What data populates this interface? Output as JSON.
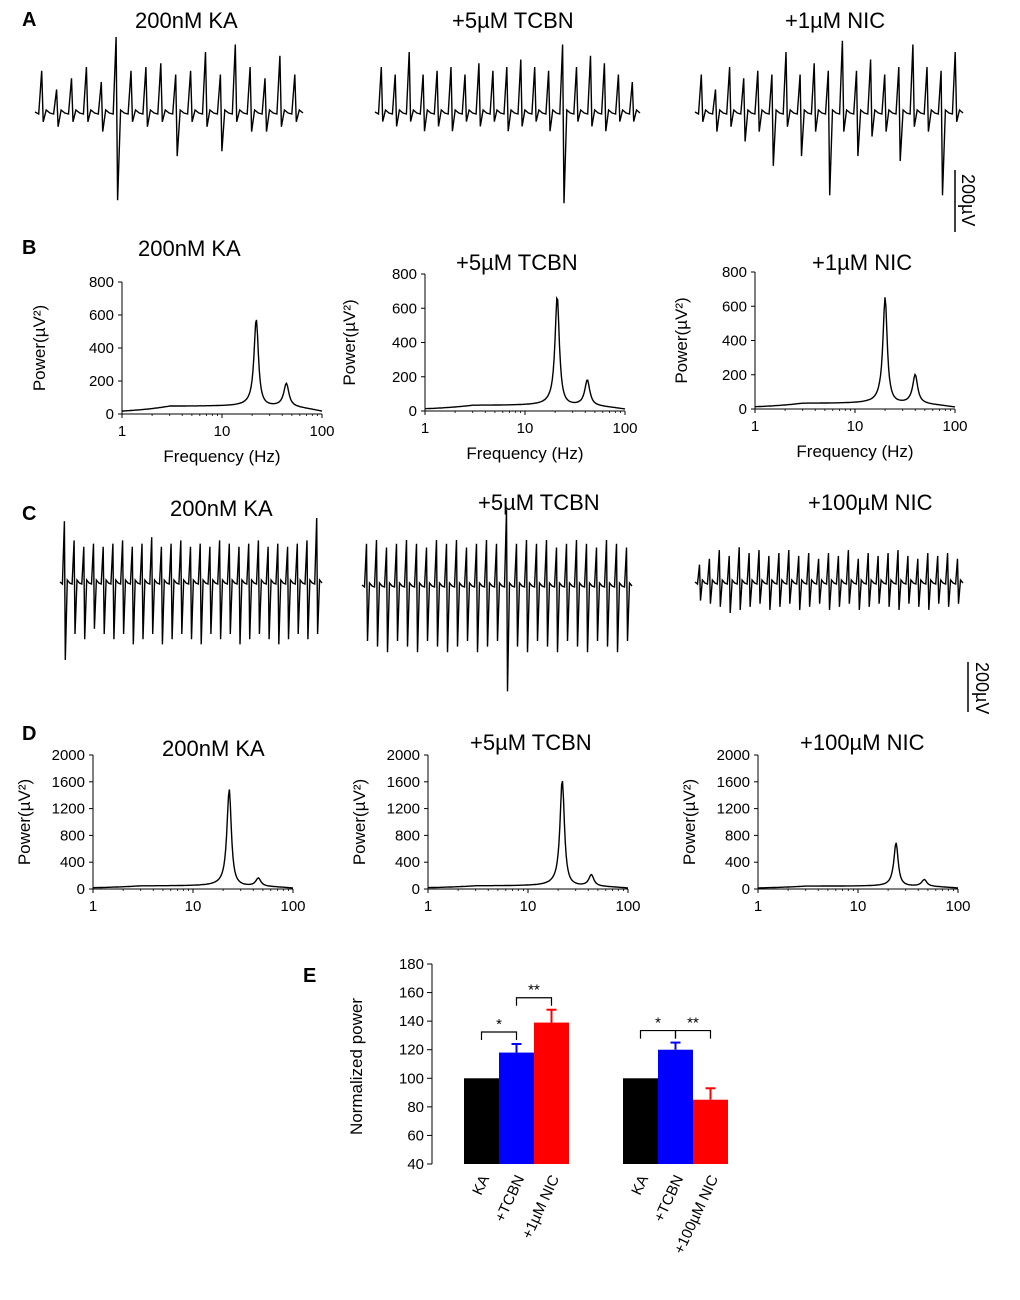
{
  "panels": {
    "A": "A",
    "B": "B",
    "C": "C",
    "D": "D",
    "E": "E"
  },
  "traces": [
    {
      "id": "A1",
      "title": "200nM KA",
      "rate": 5.2,
      "pos": [
        0.55,
        0.3,
        0.45,
        0.6,
        0.4,
        1.0,
        0.55,
        0.6,
        0.65,
        0.5,
        0.55,
        0.8,
        0.5,
        0.9,
        0.6,
        0.45,
        0.75,
        0.5
      ],
      "neg": [
        0.1,
        0.15,
        0.1,
        0.1,
        0.2,
        0.9,
        0.1,
        0.15,
        0.1,
        0.45,
        0.1,
        0.15,
        0.4,
        0.1,
        0.2,
        0.2,
        0.15,
        0.1
      ]
    },
    {
      "id": "A2",
      "title": "+5µM TCBN",
      "rate": 5.6,
      "pos": [
        0.6,
        0.5,
        0.8,
        0.5,
        0.55,
        0.6,
        0.5,
        0.65,
        0.55,
        0.6,
        0.7,
        0.6,
        0.55,
        0.9,
        0.6,
        0.75,
        0.65,
        0.5,
        0.4
      ],
      "neg": [
        0.1,
        0.15,
        0.1,
        0.2,
        0.15,
        0.2,
        0.1,
        0.15,
        0.1,
        0.2,
        0.15,
        0.1,
        0.2,
        0.95,
        0.1,
        0.15,
        0.2,
        0.1,
        0.1
      ]
    },
    {
      "id": "A3",
      "title": "+1µM NIC",
      "rate": 5.8,
      "pos": [
        0.5,
        0.3,
        0.6,
        0.45,
        0.55,
        0.5,
        0.8,
        0.5,
        0.65,
        0.55,
        0.95,
        0.55,
        0.7,
        0.5,
        0.6,
        0.9,
        0.6,
        0.55,
        0.8
      ],
      "neg": [
        0.1,
        0.2,
        0.15,
        0.3,
        0.2,
        0.55,
        0.15,
        0.45,
        0.2,
        0.85,
        0.2,
        0.45,
        0.25,
        0.2,
        0.5,
        0.15,
        0.2,
        0.85,
        0.1
      ]
    },
    {
      "id": "C1",
      "title": "200nM KA",
      "rate": 7.5,
      "pos": [
        0.95,
        0.65,
        0.55,
        0.6,
        0.55,
        0.6,
        0.65,
        0.55,
        0.6,
        0.7,
        0.55,
        0.6,
        0.65,
        0.55,
        0.6,
        0.55,
        0.65,
        0.6,
        0.55,
        0.6,
        0.65,
        0.55,
        0.6,
        0.55,
        0.6,
        0.65,
        1.0
      ],
      "neg": [
        0.75,
        0.5,
        0.55,
        0.45,
        0.5,
        0.55,
        0.5,
        0.6,
        0.55,
        0.5,
        0.6,
        0.55,
        0.5,
        0.55,
        0.6,
        0.5,
        0.55,
        0.5,
        0.6,
        0.55,
        0.5,
        0.55,
        0.6,
        0.55,
        0.5,
        0.55,
        0.5
      ]
    },
    {
      "id": "C2",
      "title": "+5µM TCBN",
      "rate": 7.8,
      "pos": [
        0.55,
        0.6,
        0.5,
        0.55,
        0.6,
        0.55,
        0.5,
        0.6,
        0.55,
        0.6,
        0.5,
        0.55,
        0.6,
        0.55,
        1.0,
        0.55,
        0.6,
        0.55,
        0.6,
        0.5,
        0.55,
        0.6,
        0.55,
        0.5,
        0.6,
        0.55,
        0.5
      ],
      "neg": [
        0.5,
        0.55,
        0.6,
        0.5,
        0.55,
        0.6,
        0.5,
        0.55,
        0.6,
        0.55,
        0.5,
        0.6,
        0.55,
        0.5,
        0.95,
        0.55,
        0.6,
        0.5,
        0.55,
        0.6,
        0.5,
        0.55,
        0.6,
        0.5,
        0.55,
        0.6,
        0.5
      ]
    },
    {
      "id": "C3",
      "title": "+100µM NIC",
      "rate": 8.2,
      "pos": [
        0.3,
        0.4,
        0.55,
        0.45,
        0.6,
        0.5,
        0.55,
        0.45,
        0.5,
        0.55,
        0.45,
        0.5,
        0.4,
        0.5,
        0.45,
        0.55,
        0.4,
        0.5,
        0.45,
        0.5,
        0.55,
        0.45,
        0.4,
        0.5,
        0.45,
        0.5,
        0.4
      ],
      "neg": [
        0.3,
        0.35,
        0.4,
        0.5,
        0.45,
        0.4,
        0.35,
        0.45,
        0.4,
        0.35,
        0.45,
        0.4,
        0.35,
        0.45,
        0.4,
        0.35,
        0.45,
        0.4,
        0.35,
        0.4,
        0.45,
        0.35,
        0.4,
        0.45,
        0.35,
        0.4,
        0.35
      ]
    }
  ],
  "scalebar_label": "200µV",
  "spectra_B": {
    "xlabel": "Frequency (Hz)",
    "ylabel": "Power(µV²)",
    "yticks": [
      "0",
      "200",
      "400",
      "600",
      "800"
    ],
    "xticks": [
      "1",
      "10",
      "100"
    ],
    "ymax": 800,
    "plots": [
      {
        "id": "B1",
        "title": "200nM KA",
        "peak_hz": 22,
        "peak_val": 530,
        "harm_hz": 44,
        "harm_val": 140,
        "base": 45
      },
      {
        "id": "B2",
        "title": "+5µM TCBN",
        "peak_hz": 21,
        "peak_val": 640,
        "harm_hz": 42,
        "harm_val": 150,
        "base": 30
      },
      {
        "id": "B3",
        "title": "+1µM NIC",
        "peak_hz": 20,
        "peak_val": 620,
        "harm_hz": 40,
        "harm_val": 170,
        "base": 30
      }
    ]
  },
  "spectra_D": {
    "ylabel": "Power(µV²)",
    "yticks": [
      "0",
      "400",
      "800",
      "1200",
      "1600",
      "2000"
    ],
    "yticks_first": [
      "0",
      "400",
      "800",
      "1200",
      "1600",
      "2000"
    ],
    "xticks": [
      "1",
      "10",
      "100"
    ],
    "ymax": 2000,
    "plots": [
      {
        "id": "D1",
        "title": "200nM KA",
        "peak_hz": 23,
        "peak_val": 1450,
        "harm_hz": 45,
        "harm_val": 120,
        "base": 40
      },
      {
        "id": "D2",
        "title": "+5µM TCBN",
        "peak_hz": 22,
        "peak_val": 1590,
        "harm_hz": 43,
        "harm_val": 170,
        "base": 40
      },
      {
        "id": "D3",
        "title": "+100µM NIC",
        "peak_hz": 24,
        "peak_val": 650,
        "harm_hz": 46,
        "harm_val": 100,
        "base": 40
      }
    ]
  },
  "chart_data": {
    "type": "bar",
    "ylabel": "Normalized power",
    "ylim": [
      40,
      180
    ],
    "yticks": [
      "40",
      "60",
      "80",
      "100",
      "120",
      "140",
      "160",
      "180"
    ],
    "groups": [
      {
        "categories": [
          "KA",
          "+TCBN",
          "+1µM NIC"
        ],
        "values": [
          100,
          118,
          139
        ],
        "errors": [
          0,
          6,
          9
        ],
        "colors": [
          "#000000",
          "#0000ff",
          "#ff0000"
        ],
        "significance": [
          "*",
          "**"
        ]
      },
      {
        "categories": [
          "KA",
          "+TCBN",
          "+100µM NIC"
        ],
        "values": [
          100,
          120,
          85
        ],
        "errors": [
          0,
          5,
          8
        ],
        "colors": [
          "#000000",
          "#0000ff",
          "#ff0000"
        ],
        "significance": [
          "*",
          "**"
        ]
      }
    ]
  }
}
